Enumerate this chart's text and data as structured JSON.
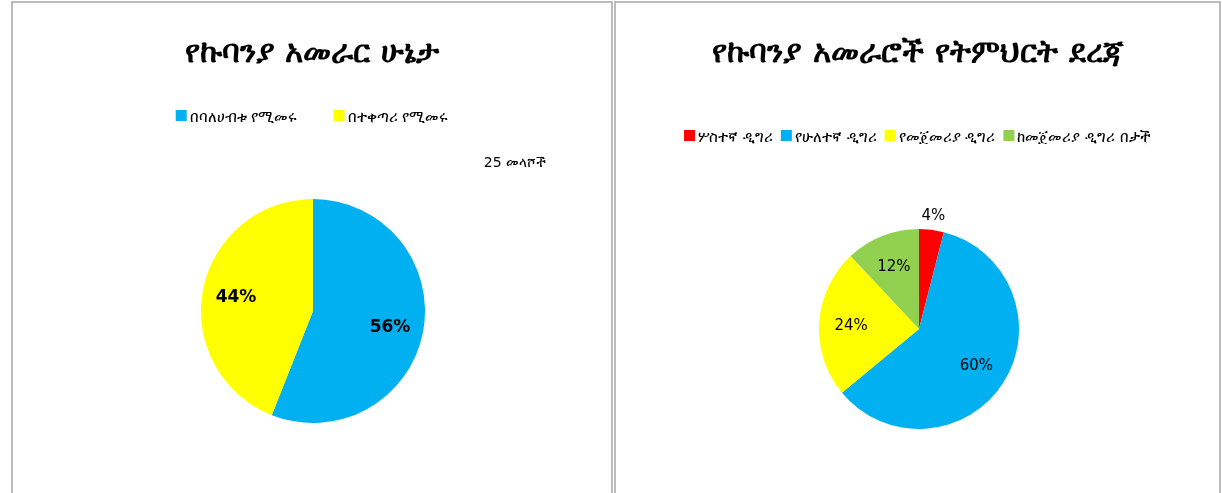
{
  "chart_data": [
    {
      "type": "pie",
      "title": "የኩባንያ አመራር ሁኔታ",
      "categories": [
        "በባለሀብቱ የሚመሩ",
        "በተቀጣሪ የሚመሩ"
      ],
      "values": [
        56,
        44
      ],
      "value_labels": [
        "56%",
        "44%"
      ],
      "colors": [
        "#00b0f0",
        "#ffff00"
      ],
      "legend": "top",
      "annotations": [
        "25 መላሾች"
      ]
    },
    {
      "type": "pie",
      "title": "የኩባንያ አመራሮች የትምህርት ደረጃ",
      "categories": [
        "ሦስተኛ ዲግሪ",
        "የሁለተኛ ዲግሪ",
        "የመጀመሪያ ዲግሪ",
        "ከመጀመሪያ ዲግሪ በታች"
      ],
      "values": [
        4,
        60,
        24,
        12
      ],
      "value_labels": [
        "4%",
        "60%",
        "24%",
        "12%"
      ],
      "colors": [
        "#ff0000",
        "#00b0f0",
        "#ffff00",
        "#92d050"
      ],
      "legend": "top"
    }
  ]
}
